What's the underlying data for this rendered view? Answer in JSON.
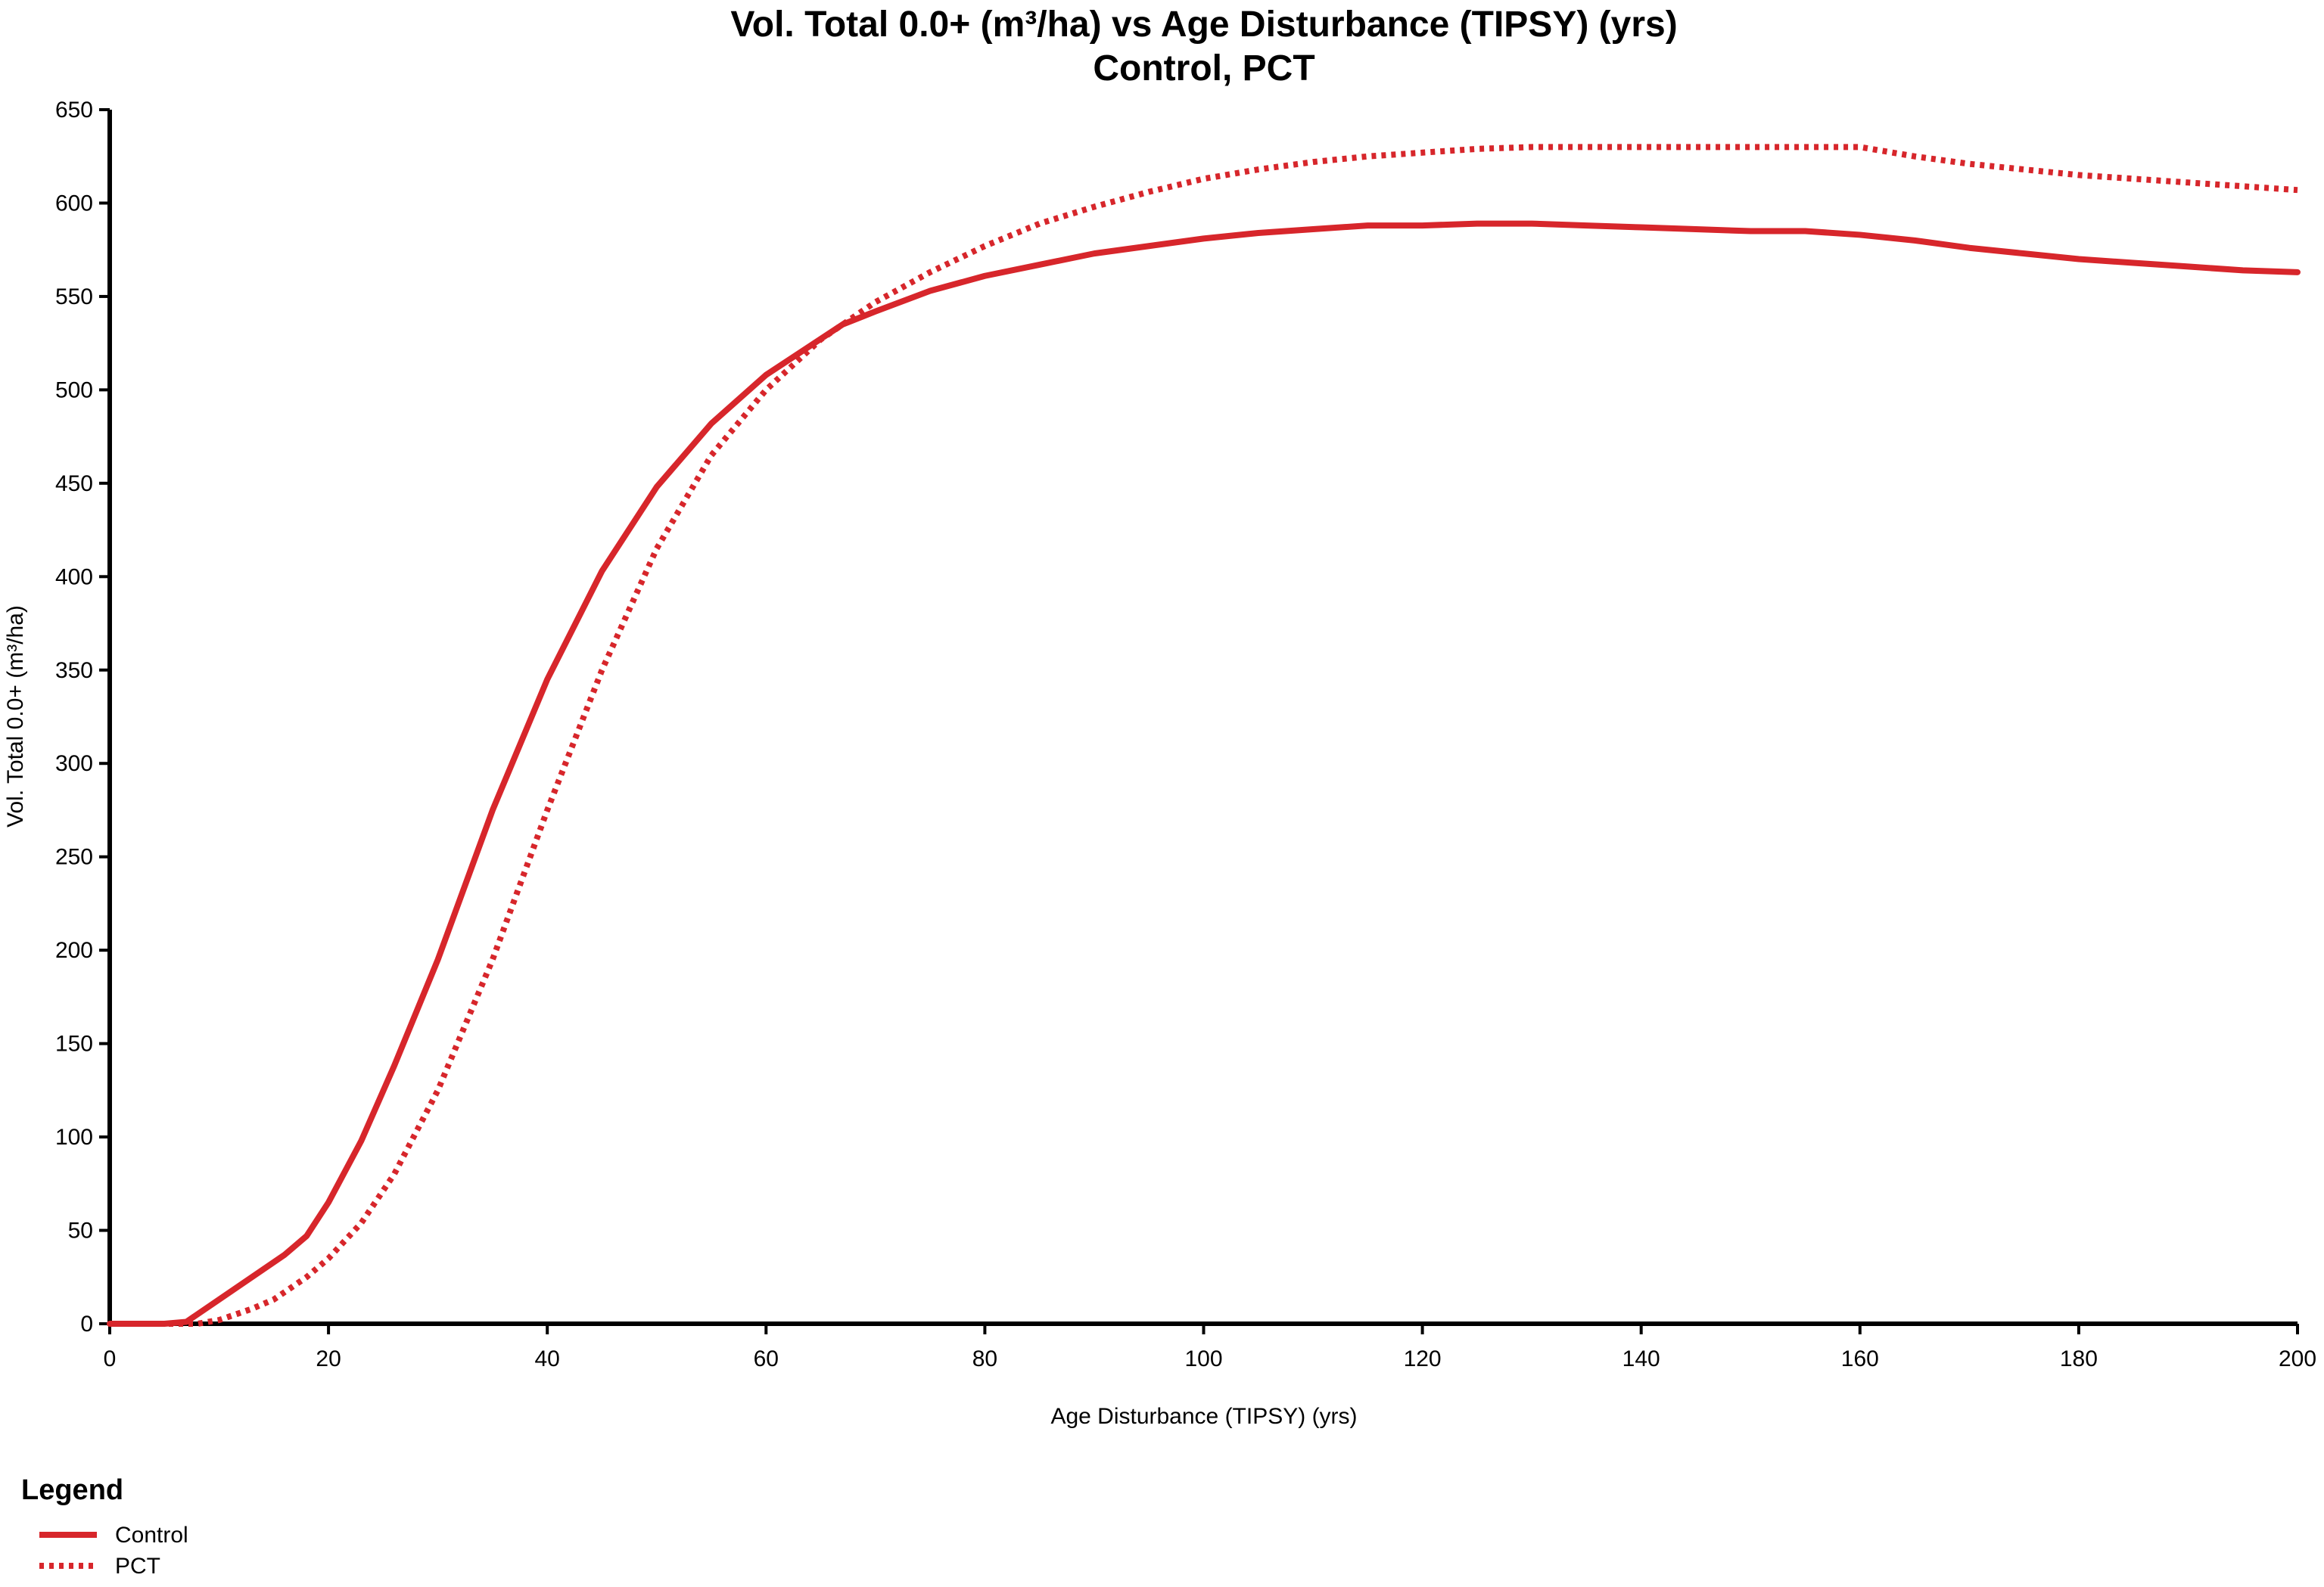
{
  "chart_data": {
    "type": "line",
    "title": "Vol. Total 0.0+ (m³/ha) vs Age Disturbance (TIPSY) (yrs)",
    "subtitle": "Control, PCT",
    "xlabel": "Age Disturbance (TIPSY) (yrs)",
    "ylabel": "Vol. Total 0.0+ (m³/ha)",
    "xlim": [
      0,
      200
    ],
    "ylim": [
      0,
      650
    ],
    "x_ticks": [
      0,
      20,
      40,
      60,
      80,
      100,
      120,
      140,
      160,
      180,
      200
    ],
    "y_ticks": [
      0,
      50,
      100,
      150,
      200,
      250,
      300,
      350,
      400,
      450,
      500,
      550,
      600,
      650
    ],
    "grid": false,
    "legend": {
      "title": "Legend",
      "position": "bottom-left"
    },
    "series": [
      {
        "name": "Control",
        "style": "solid",
        "color": "#d7262b",
        "points": [
          [
            0,
            0
          ],
          [
            5,
            0
          ],
          [
            7,
            1
          ],
          [
            10,
            13
          ],
          [
            13,
            25
          ],
          [
            16,
            37
          ],
          [
            18,
            47
          ],
          [
            20,
            65
          ],
          [
            23,
            98
          ],
          [
            26,
            138
          ],
          [
            30,
            195
          ],
          [
            35,
            275
          ],
          [
            40,
            345
          ],
          [
            45,
            403
          ],
          [
            50,
            448
          ],
          [
            55,
            482
          ],
          [
            60,
            508
          ],
          [
            67,
            535
          ],
          [
            70,
            542
          ],
          [
            75,
            553
          ],
          [
            80,
            561
          ],
          [
            85,
            567
          ],
          [
            90,
            573
          ],
          [
            95,
            577
          ],
          [
            100,
            581
          ],
          [
            105,
            584
          ],
          [
            110,
            586
          ],
          [
            115,
            588
          ],
          [
            120,
            588
          ],
          [
            125,
            589
          ],
          [
            130,
            589
          ],
          [
            135,
            588
          ],
          [
            140,
            587
          ],
          [
            145,
            586
          ],
          [
            150,
            585
          ],
          [
            155,
            585
          ],
          [
            160,
            583
          ],
          [
            165,
            580
          ],
          [
            170,
            576
          ],
          [
            175,
            573
          ],
          [
            180,
            570
          ],
          [
            185,
            568
          ],
          [
            190,
            566
          ],
          [
            195,
            564
          ],
          [
            200,
            563
          ]
        ]
      },
      {
        "name": "PCT",
        "style": "dotted",
        "color": "#d7262b",
        "points": [
          [
            0,
            0
          ],
          [
            6,
            0
          ],
          [
            8,
            0
          ],
          [
            10,
            2
          ],
          [
            13,
            8
          ],
          [
            15,
            13
          ],
          [
            18,
            25
          ],
          [
            20,
            35
          ],
          [
            23,
            54
          ],
          [
            26,
            80
          ],
          [
            30,
            125
          ],
          [
            35,
            195
          ],
          [
            40,
            275
          ],
          [
            45,
            350
          ],
          [
            50,
            415
          ],
          [
            55,
            465
          ],
          [
            60,
            500
          ],
          [
            65,
            527
          ],
          [
            70,
            547
          ],
          [
            75,
            563
          ],
          [
            80,
            577
          ],
          [
            85,
            589
          ],
          [
            90,
            598
          ],
          [
            95,
            606
          ],
          [
            100,
            613
          ],
          [
            105,
            618
          ],
          [
            110,
            622
          ],
          [
            115,
            625
          ],
          [
            120,
            627
          ],
          [
            125,
            629
          ],
          [
            130,
            630
          ],
          [
            135,
            630
          ],
          [
            140,
            630
          ],
          [
            145,
            630
          ],
          [
            150,
            630
          ],
          [
            155,
            630
          ],
          [
            160,
            630
          ],
          [
            165,
            625
          ],
          [
            170,
            621
          ],
          [
            175,
            618
          ],
          [
            180,
            615
          ],
          [
            185,
            613
          ],
          [
            190,
            611
          ],
          [
            195,
            609
          ],
          [
            200,
            607
          ]
        ]
      }
    ]
  }
}
